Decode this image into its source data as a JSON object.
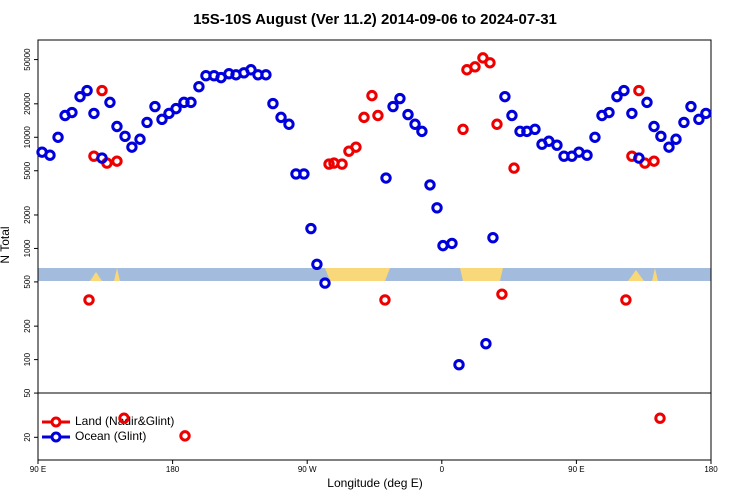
{
  "chart_data": {
    "type": "scatter",
    "title": "15S-10S August (Ver 11.2)   2014-09-06 to 2024-07-31",
    "x_label": "Longitude (deg E)",
    "y_label": "N Total",
    "log_y": true,
    "legend": "lower left",
    "xlim": [
      90,
      540
    ],
    "ylim": [
      12.5,
      75000
    ],
    "xticks": [
      {
        "value": 90,
        "label": "90 E"
      },
      180,
      {
        "value": 270,
        "label": "90 W"
      },
      {
        "value": 360,
        "label": "0"
      },
      {
        "value": 450,
        "label": "90 E"
      },
      {
        "value": 540,
        "label": "180"
      }
    ],
    "yticks": [
      20,
      50,
      100,
      200,
      500,
      1000,
      2000,
      5000,
      10000,
      20000,
      50000
    ],
    "series": [
      {
        "name": "Land (Nadir&Glint)",
        "color": "#ee0000",
        "x": [
          132.8,
          127.4,
          136.1,
          142.8,
          124.1,
          147.5,
          188.3,
          284.6,
          287.9,
          293.3,
          297.9,
          302.6,
          308.0,
          313.3,
          317.3,
          322.0,
          374.2,
          376.8,
          382.2,
          387.5,
          392.2,
          396.9,
          400.2,
          408.3,
          483.1,
          487.1,
          491.8,
          495.8,
          501.9,
          505.9
        ],
        "values": [
          26300,
          6760,
          5860,
          6100,
          344,
          29.7,
          20.6,
          5740,
          5860,
          5740,
          7500,
          8150,
          15100,
          23700,
          15700,
          344,
          11800,
          40500,
          43000,
          51800,
          46800,
          13100,
          388,
          5280,
          344,
          6760,
          26300,
          5860,
          6100,
          29.7
        ]
      },
      {
        "name": "Ocean (Glint)",
        "color": "#0000dd",
        "x": [
          92.7,
          98.0,
          103.4,
          108.1,
          112.7,
          118.1,
          122.8,
          127.4,
          132.8,
          138.1,
          142.8,
          148.2,
          152.8,
          158.2,
          162.9,
          168.2,
          172.9,
          177.6,
          182.3,
          187.6,
          192.3,
          197.6,
          202.3,
          207.7,
          212.4,
          217.7,
          222.4,
          227.7,
          232.4,
          237.1,
          242.4,
          247.1,
          252.5,
          257.8,
          262.5,
          267.8,
          272.5,
          276.5,
          281.9,
          322.7,
          327.4,
          332.0,
          337.4,
          342.1,
          346.7,
          352.1,
          356.8,
          360.8,
          366.8,
          371.5,
          389.5,
          394.2,
          402.2,
          406.9,
          412.3,
          416.9,
          422.3,
          427.0,
          431.6,
          437.0,
          441.7,
          447.0,
          451.7,
          457.1,
          462.4,
          467.1,
          471.8,
          477.1,
          481.8,
          487.1,
          491.8,
          497.2,
          501.9,
          506.5,
          511.9,
          516.6,
          521.9,
          526.6,
          531.9,
          536.6
        ],
        "values": [
          7350,
          6900,
          10000,
          15700,
          16700,
          23200,
          26300,
          16400,
          6500,
          20600,
          12500,
          10200,
          8150,
          9600,
          13600,
          18900,
          14500,
          16400,
          18100,
          20600,
          20600,
          28500,
          35800,
          35800,
          34400,
          37300,
          36500,
          38000,
          40500,
          36500,
          36500,
          20100,
          15100,
          13100,
          4680,
          4680,
          1510,
          720,
          488,
          4300,
          18900,
          22300,
          16000,
          13100,
          11300,
          3730,
          2320,
          1060,
          1110,
          90,
          139,
          1250,
          23200,
          15700,
          11300,
          11300,
          11800,
          8660,
          9210,
          8490,
          6760,
          6760,
          7350,
          6900,
          10000,
          15700,
          16700,
          23200,
          26300,
          16400,
          6500,
          20600,
          12500,
          10200,
          8150,
          9600,
          13600,
          18900,
          14500,
          16400
        ]
      }
    ]
  }
}
